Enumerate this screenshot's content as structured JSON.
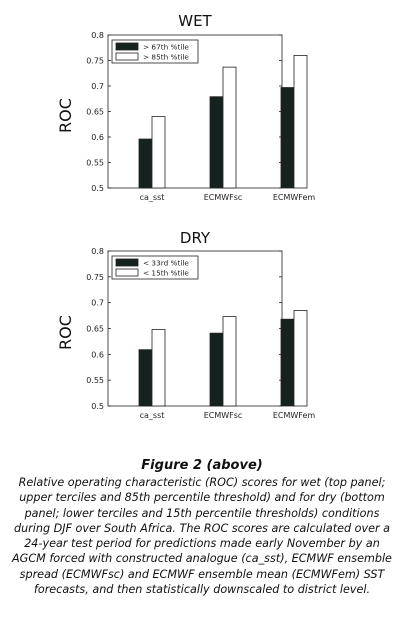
{
  "chart_data": [
    {
      "type": "bar",
      "title": "WET",
      "ylabel": "ROC",
      "xlabel": "",
      "ylim": [
        0.5,
        0.8
      ],
      "yticks": [
        "0.5",
        "0.55",
        "0.6",
        "0.65",
        "0.7",
        "0.75",
        "0.8"
      ],
      "categories": [
        "ca_sst",
        "ECMWFsc",
        "ECMWFem"
      ],
      "series": [
        {
          "name": "> 67th %tile",
          "values": [
            0.596,
            0.679,
            0.697
          ],
          "color": "#16221f"
        },
        {
          "name": "> 85th %tile",
          "values": [
            0.64,
            0.737,
            0.76
          ],
          "color": "#ffffff"
        }
      ],
      "legend": "top-left",
      "grid": false
    },
    {
      "type": "bar",
      "title": "DRY",
      "ylabel": "ROC",
      "xlabel": "",
      "ylim": [
        0.5,
        0.8
      ],
      "yticks": [
        "0.5",
        "0.55",
        "0.6",
        "0.65",
        "0.7",
        "0.75",
        "0.8"
      ],
      "categories": [
        "ca_sst",
        "ECMWFsc",
        "ECMWFem"
      ],
      "series": [
        {
          "name": "< 33rd %tile",
          "values": [
            0.609,
            0.641,
            0.668
          ],
          "color": "#16221f"
        },
        {
          "name": "< 15th %tile",
          "values": [
            0.648,
            0.673,
            0.685
          ],
          "color": "#ffffff"
        }
      ],
      "legend": "top-left",
      "grid": false
    }
  ],
  "caption": {
    "title": "Figure 2 (above)",
    "text": "Relative operating characteristic (ROC) scores for wet (top panel; upper terciles and 85th percentile threshold) and for dry (bottom panel; lower terciles and 15th percentile thresholds) conditions during DJF over South Africa. The ROC scores are calculated over a 24-year test period for predictions made early November by an AGCM forced with constructed analogue (ca_sst), ECMWF ensemble spread (ECMWFsc) and ECMWF ensemble mean (ECMWFem) SST forecasts, and then statistically downscaled to district level."
  }
}
